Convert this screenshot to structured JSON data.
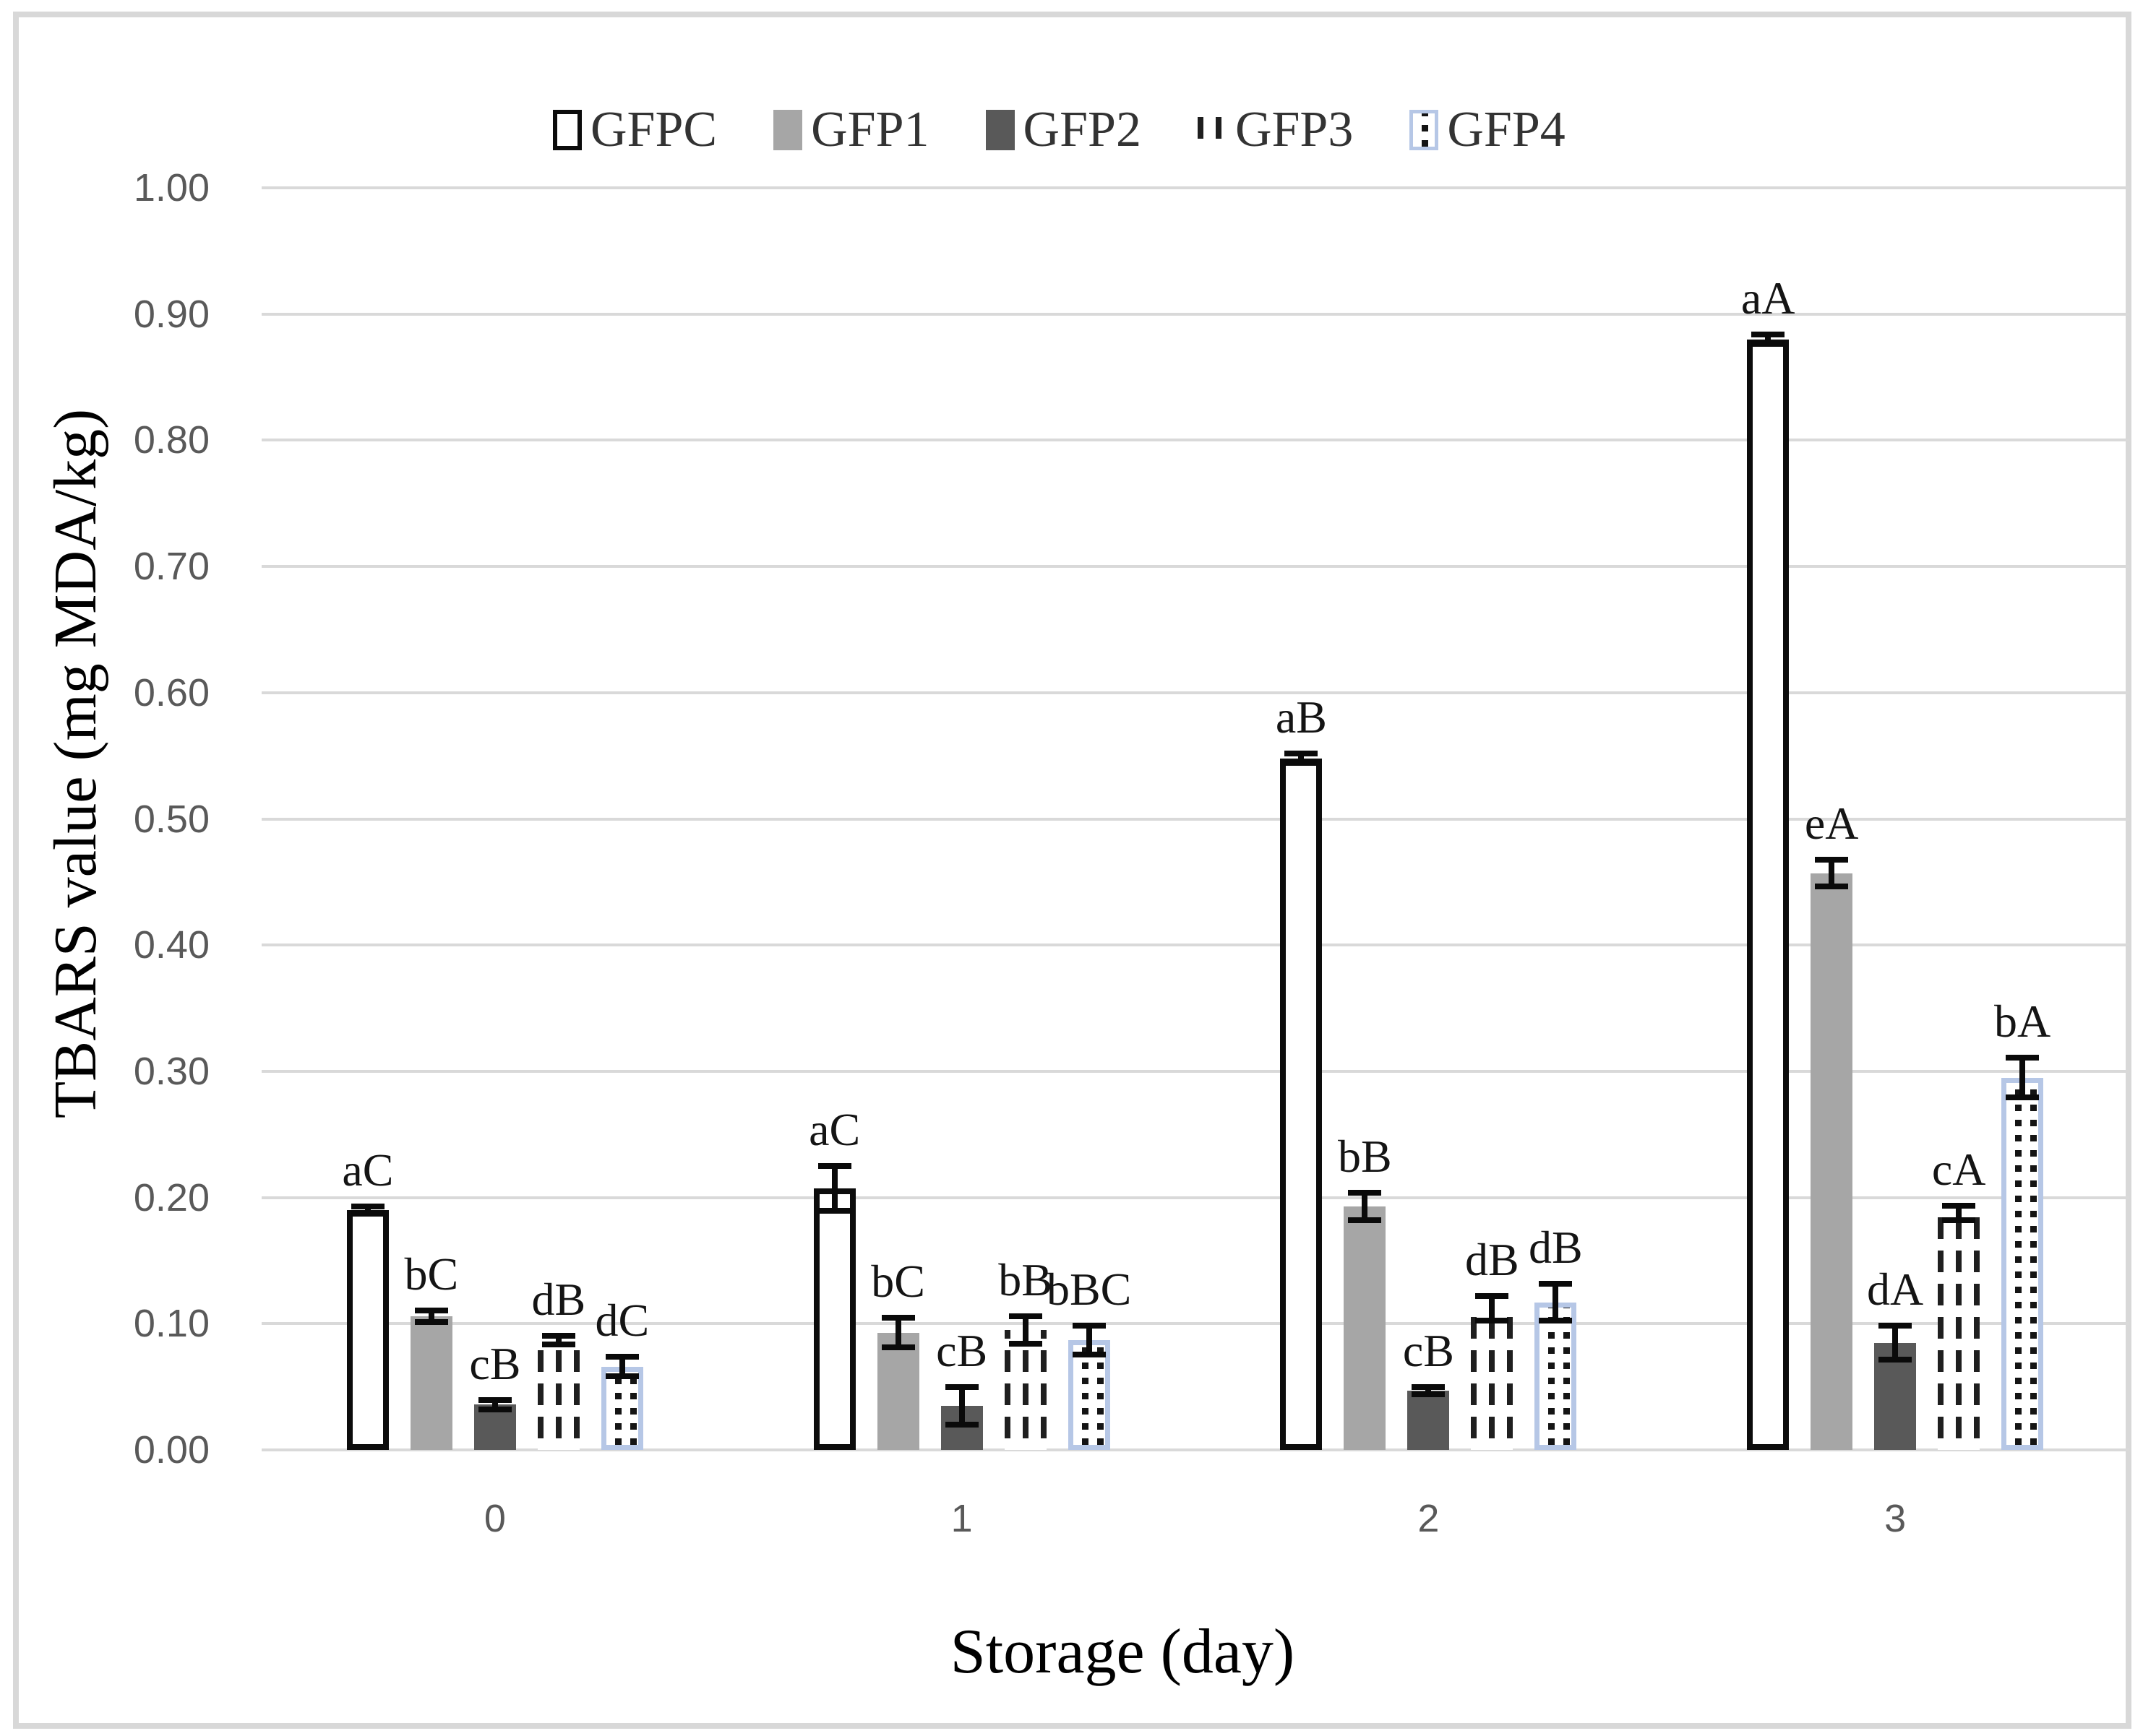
{
  "figure": {
    "y_axis_title": "TBARS value (mg MDA/kg)",
    "x_axis_title": "Storage (day)"
  },
  "colors": {
    "gridline": "#d9d9d9",
    "frame": "#d8d8d8",
    "tick_text": "#595959",
    "error_bar": "#0a0a0a",
    "gfpc_outline": "#0c0c0c",
    "gfp1_fill": "#a6a6a6",
    "gfp2_fill": "#595959",
    "gfp3_pattern": "#1f1f1f",
    "gfp4_border": "#b6c7e6",
    "gfp4_dots": "#141414"
  },
  "chart_data": {
    "type": "bar",
    "title": "",
    "xlabel": "Storage (day)",
    "ylabel": "TBARS value (mg MDA/kg)",
    "ylim": [
      0.0,
      1.0
    ],
    "y_tick_step": 0.1,
    "y_tick_labels": [
      "0.00",
      "0.10",
      "0.20",
      "0.30",
      "0.40",
      "0.50",
      "0.60",
      "0.70",
      "0.80",
      "0.90",
      "1.00"
    ],
    "grid": true,
    "legend_position": "top-center",
    "categories": [
      "0",
      "1",
      "2",
      "3"
    ],
    "series": [
      {
        "name": "GFPC",
        "fill_style": "white-black-outline",
        "values": [
          0.19,
          0.207,
          0.548,
          0.88
        ],
        "errors": [
          0.005,
          0.02,
          0.006,
          0.006
        ],
        "sig_labels": [
          "aC",
          "aC",
          "aB",
          "aA"
        ]
      },
      {
        "name": "GFP1",
        "fill_style": "solid-gray",
        "values": [
          0.106,
          0.093,
          0.193,
          0.457
        ],
        "errors": [
          0.007,
          0.014,
          0.013,
          0.013
        ],
        "sig_labels": [
          "bC",
          "bC",
          "bB",
          "eA"
        ]
      },
      {
        "name": "GFP2",
        "fill_style": "solid-dark-gray",
        "values": [
          0.036,
          0.035,
          0.047,
          0.085
        ],
        "errors": [
          0.006,
          0.017,
          0.005,
          0.016
        ],
        "sig_labels": [
          "cB",
          "cB",
          "cB",
          "dA"
        ]
      },
      {
        "name": "GFP3",
        "fill_style": "white-vertical-dash-pattern",
        "values": [
          0.087,
          0.095,
          0.112,
          0.188
        ],
        "errors": [
          0.006,
          0.013,
          0.012,
          0.008
        ],
        "sig_labels": [
          "dB",
          "bB",
          "dB",
          "cA"
        ]
      },
      {
        "name": "GFP4",
        "fill_style": "white-dot-pattern-blue-border",
        "values": [
          0.066,
          0.087,
          0.117,
          0.295
        ],
        "errors": [
          0.01,
          0.014,
          0.017,
          0.018
        ],
        "sig_labels": [
          "dC",
          "bBC",
          "dB",
          "bA"
        ]
      }
    ]
  }
}
